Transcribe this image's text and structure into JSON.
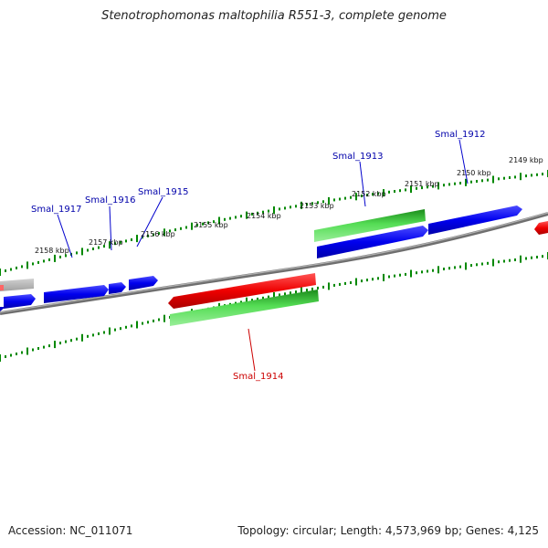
{
  "title": "Stenotrophomonas maltophilia R551-3, complete genome",
  "footer": {
    "accession": "Accession: NC_011071",
    "summary": "Topology: circular; Length: 4,573,969 bp; Genes: 4,125"
  },
  "colors": {
    "forward_gene": "#0000ee",
    "reverse_gene": "#ee0000",
    "rna_gene": "#22bb22",
    "backbone": "#808080",
    "tick_track": "#008800",
    "label_blue": "#0000aa",
    "label_red": "#cc0000"
  },
  "chart_data": {
    "type": "genome-map",
    "unit": "kbp",
    "inner_ruler": [
      "2149 kbp",
      "2150 kbp",
      "2151 kbp",
      "2152 kbp",
      "2153 kbp",
      "2154 kbp",
      "2155 kbp",
      "2156 kbp",
      "2157 kbp",
      "2158 kbp"
    ],
    "gene_labels": [
      {
        "name": "Smal_1912",
        "color": "blue"
      },
      {
        "name": "Smal_1913",
        "color": "blue"
      },
      {
        "name": "Smal_1914",
        "color": "red"
      },
      {
        "name": "Smal_1915",
        "color": "blue"
      },
      {
        "name": "Smal_1916",
        "color": "blue"
      },
      {
        "name": "Smal_1917",
        "color": "blue"
      }
    ]
  }
}
